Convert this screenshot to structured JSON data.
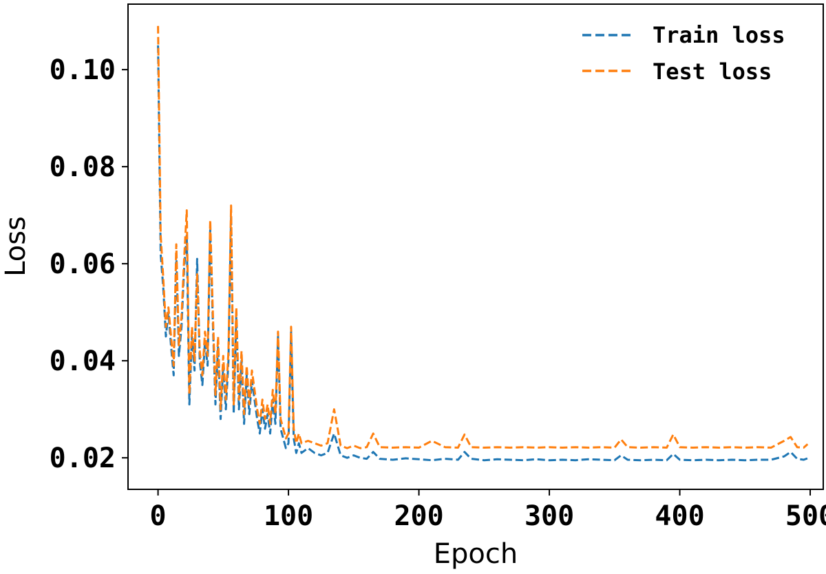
{
  "chart_data": {
    "type": "line",
    "title": "",
    "xlabel": "Epoch",
    "ylabel": "Loss",
    "xlim": [
      -23,
      510
    ],
    "ylim": [
      0.0135,
      0.1135
    ],
    "x_ticks": [
      0,
      100,
      200,
      300,
      400,
      500
    ],
    "x_tick_labels": [
      "0",
      "100",
      "200",
      "300",
      "400",
      "500"
    ],
    "y_ticks": [
      0.02,
      0.04,
      0.06,
      0.08,
      0.1
    ],
    "y_tick_labels": [
      "0.02",
      "0.04",
      "0.06",
      "0.08",
      "0.10"
    ],
    "grid": false,
    "legend_position": "top-right",
    "series": [
      {
        "name": "Train loss",
        "color": "#1f77b4",
        "points": [
          [
            0,
            0.105
          ],
          [
            2,
            0.062
          ],
          [
            4,
            0.055
          ],
          [
            6,
            0.045
          ],
          [
            8,
            0.05
          ],
          [
            10,
            0.043
          ],
          [
            12,
            0.037
          ],
          [
            14,
            0.062
          ],
          [
            16,
            0.041
          ],
          [
            18,
            0.047
          ],
          [
            20,
            0.059
          ],
          [
            22,
            0.066
          ],
          [
            24,
            0.031
          ],
          [
            26,
            0.045
          ],
          [
            28,
            0.038
          ],
          [
            30,
            0.061
          ],
          [
            32,
            0.04
          ],
          [
            34,
            0.035
          ],
          [
            36,
            0.044
          ],
          [
            38,
            0.039
          ],
          [
            40,
            0.067
          ],
          [
            42,
            0.048
          ],
          [
            44,
            0.031
          ],
          [
            46,
            0.043
          ],
          [
            48,
            0.028
          ],
          [
            50,
            0.039
          ],
          [
            52,
            0.03
          ],
          [
            54,
            0.04
          ],
          [
            56,
            0.07
          ],
          [
            58,
            0.029
          ],
          [
            60,
            0.049
          ],
          [
            62,
            0.03
          ],
          [
            64,
            0.04
          ],
          [
            66,
            0.027
          ],
          [
            68,
            0.037
          ],
          [
            70,
            0.029
          ],
          [
            72,
            0.036
          ],
          [
            74,
            0.032
          ],
          [
            76,
            0.028
          ],
          [
            78,
            0.025
          ],
          [
            80,
            0.03
          ],
          [
            82,
            0.026
          ],
          [
            84,
            0.029
          ],
          [
            86,
            0.025
          ],
          [
            88,
            0.032
          ],
          [
            90,
            0.027
          ],
          [
            92,
            0.045
          ],
          [
            94,
            0.026
          ],
          [
            96,
            0.024
          ],
          [
            98,
            0.022
          ],
          [
            100,
            0.023
          ],
          [
            102,
            0.046
          ],
          [
            104,
            0.024
          ],
          [
            106,
            0.021
          ],
          [
            108,
            0.023
          ],
          [
            110,
            0.021
          ],
          [
            115,
            0.022
          ],
          [
            120,
            0.021
          ],
          [
            125,
            0.0205
          ],
          [
            130,
            0.021
          ],
          [
            135,
            0.025
          ],
          [
            140,
            0.0205
          ],
          [
            145,
            0.02
          ],
          [
            150,
            0.0205
          ],
          [
            155,
            0.02
          ],
          [
            160,
            0.0198
          ],
          [
            165,
            0.0212
          ],
          [
            170,
            0.0198
          ],
          [
            180,
            0.0196
          ],
          [
            190,
            0.0199
          ],
          [
            200,
            0.0197
          ],
          [
            210,
            0.0195
          ],
          [
            220,
            0.0198
          ],
          [
            230,
            0.0196
          ],
          [
            235,
            0.0212
          ],
          [
            240,
            0.0198
          ],
          [
            250,
            0.0195
          ],
          [
            260,
            0.0197
          ],
          [
            270,
            0.0196
          ],
          [
            280,
            0.0195
          ],
          [
            290,
            0.0197
          ],
          [
            300,
            0.0195
          ],
          [
            310,
            0.0196
          ],
          [
            320,
            0.0195
          ],
          [
            330,
            0.0197
          ],
          [
            340,
            0.0196
          ],
          [
            350,
            0.0195
          ],
          [
            355,
            0.0205
          ],
          [
            360,
            0.0196
          ],
          [
            370,
            0.0195
          ],
          [
            380,
            0.0196
          ],
          [
            390,
            0.0195
          ],
          [
            395,
            0.0208
          ],
          [
            400,
            0.0196
          ],
          [
            410,
            0.0195
          ],
          [
            420,
            0.0196
          ],
          [
            430,
            0.0195
          ],
          [
            440,
            0.0196
          ],
          [
            450,
            0.0195
          ],
          [
            460,
            0.0196
          ],
          [
            470,
            0.0196
          ],
          [
            480,
            0.0203
          ],
          [
            485,
            0.0212
          ],
          [
            490,
            0.0198
          ],
          [
            495,
            0.0196
          ],
          [
            498,
            0.0199
          ]
        ]
      },
      {
        "name": "Test loss",
        "color": "#ff7f0e",
        "points": [
          [
            0,
            0.109
          ],
          [
            2,
            0.066
          ],
          [
            4,
            0.057
          ],
          [
            6,
            0.047
          ],
          [
            8,
            0.051
          ],
          [
            10,
            0.045
          ],
          [
            12,
            0.039
          ],
          [
            14,
            0.064
          ],
          [
            16,
            0.043
          ],
          [
            18,
            0.049
          ],
          [
            20,
            0.061
          ],
          [
            22,
            0.071
          ],
          [
            24,
            0.033
          ],
          [
            26,
            0.047
          ],
          [
            28,
            0.04
          ],
          [
            30,
            0.058
          ],
          [
            32,
            0.042
          ],
          [
            34,
            0.037
          ],
          [
            36,
            0.046
          ],
          [
            38,
            0.041
          ],
          [
            40,
            0.069
          ],
          [
            42,
            0.05
          ],
          [
            44,
            0.033
          ],
          [
            46,
            0.045
          ],
          [
            48,
            0.03
          ],
          [
            50,
            0.041
          ],
          [
            52,
            0.032
          ],
          [
            54,
            0.042
          ],
          [
            56,
            0.072
          ],
          [
            58,
            0.031
          ],
          [
            60,
            0.051
          ],
          [
            62,
            0.032
          ],
          [
            64,
            0.042
          ],
          [
            66,
            0.029
          ],
          [
            68,
            0.039
          ],
          [
            70,
            0.031
          ],
          [
            72,
            0.038
          ],
          [
            74,
            0.034
          ],
          [
            76,
            0.03
          ],
          [
            78,
            0.027
          ],
          [
            80,
            0.032
          ],
          [
            82,
            0.028
          ],
          [
            84,
            0.031
          ],
          [
            86,
            0.027
          ],
          [
            88,
            0.034
          ],
          [
            90,
            0.029
          ],
          [
            92,
            0.046
          ],
          [
            94,
            0.028
          ],
          [
            96,
            0.026
          ],
          [
            98,
            0.024
          ],
          [
            100,
            0.025
          ],
          [
            102,
            0.047
          ],
          [
            104,
            0.026
          ],
          [
            106,
            0.023
          ],
          [
            108,
            0.025
          ],
          [
            110,
            0.023
          ],
          [
            115,
            0.0235
          ],
          [
            120,
            0.023
          ],
          [
            125,
            0.0225
          ],
          [
            130,
            0.023
          ],
          [
            135,
            0.03
          ],
          [
            140,
            0.0225
          ],
          [
            145,
            0.022
          ],
          [
            150,
            0.0225
          ],
          [
            155,
            0.022
          ],
          [
            160,
            0.0222
          ],
          [
            165,
            0.025
          ],
          [
            170,
            0.0222
          ],
          [
            180,
            0.0221
          ],
          [
            190,
            0.0222
          ],
          [
            200,
            0.0221
          ],
          [
            210,
            0.0235
          ],
          [
            220,
            0.0222
          ],
          [
            230,
            0.0221
          ],
          [
            235,
            0.0248
          ],
          [
            240,
            0.0222
          ],
          [
            250,
            0.0221
          ],
          [
            260,
            0.0222
          ],
          [
            270,
            0.0221
          ],
          [
            280,
            0.0222
          ],
          [
            290,
            0.0221
          ],
          [
            300,
            0.0222
          ],
          [
            310,
            0.0221
          ],
          [
            320,
            0.0222
          ],
          [
            330,
            0.0221
          ],
          [
            340,
            0.0222
          ],
          [
            350,
            0.0221
          ],
          [
            355,
            0.0238
          ],
          [
            360,
            0.0222
          ],
          [
            370,
            0.0221
          ],
          [
            380,
            0.0222
          ],
          [
            390,
            0.0221
          ],
          [
            395,
            0.0248
          ],
          [
            400,
            0.0222
          ],
          [
            410,
            0.0221
          ],
          [
            420,
            0.0222
          ],
          [
            430,
            0.0221
          ],
          [
            440,
            0.0222
          ],
          [
            450,
            0.0221
          ],
          [
            460,
            0.0222
          ],
          [
            470,
            0.0221
          ],
          [
            480,
            0.0235
          ],
          [
            485,
            0.0243
          ],
          [
            490,
            0.0222
          ],
          [
            495,
            0.0221
          ],
          [
            498,
            0.0228
          ]
        ]
      }
    ]
  }
}
